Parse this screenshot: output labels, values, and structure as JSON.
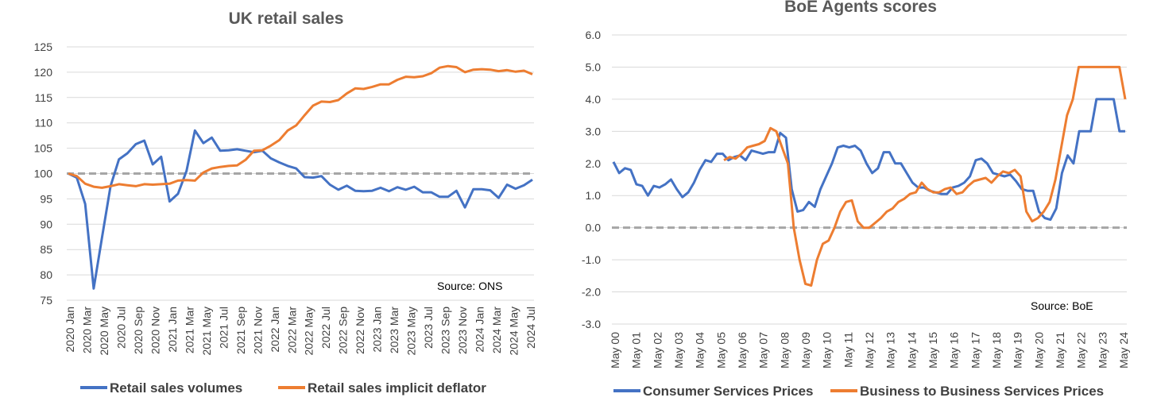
{
  "colors": {
    "blue": "#4472C4",
    "orange": "#ED7D31",
    "reference": "#A6A6A6",
    "grid": "#D9D9D9"
  },
  "chart_data": [
    {
      "type": "line",
      "title": "UK retail sales",
      "source": "Source: ONS",
      "ylim": [
        75,
        125
      ],
      "yticks": [
        "75",
        "80",
        "85",
        "90",
        "95",
        "100",
        "105",
        "110",
        "115",
        "120",
        "125"
      ],
      "grid": true,
      "legend_position": "bottom",
      "x_tick_labels": [
        "2020 Jan",
        "2020 Mar",
        "2020 May",
        "2020 Jul",
        "2020 Sep",
        "2020 Nov",
        "2021 Jan",
        "2021 Mar",
        "2021 May",
        "2021 Jul",
        "2021 Sep",
        "2021 Nov",
        "2022 Jan",
        "2022 Mar",
        "2022 May",
        "2022 Jul",
        "2022 Sep",
        "2022 Nov",
        "2023 Jan",
        "2023 Mar",
        "2023 May",
        "2023 Jul",
        "2023 Sep",
        "2023 Nov",
        "2024 Jan",
        "2024 Mar",
        "2024 May",
        "2024 Jul"
      ],
      "reference_line": 100,
      "series": [
        {
          "name": "Retail sales volumes",
          "color": "#4472C4",
          "values": [
            100.0,
            99.2,
            94.0,
            77.3,
            87.5,
            97.5,
            102.8,
            104.0,
            105.8,
            106.5,
            101.8,
            103.3,
            94.5,
            96.0,
            100.5,
            108.5,
            106.0,
            107.1,
            104.5,
            104.6,
            104.8,
            104.5,
            104.2,
            104.5,
            103.0,
            102.2,
            101.5,
            101.0,
            99.3,
            99.2,
            99.5,
            97.8,
            96.8,
            97.6,
            96.6,
            96.5,
            96.6,
            97.2,
            96.5,
            97.3,
            96.8,
            97.4,
            96.3,
            96.3,
            95.4,
            95.4,
            96.6,
            93.3,
            96.9,
            96.9,
            96.7,
            95.2,
            97.8,
            97.0,
            97.7,
            98.8
          ]
        },
        {
          "name": "Retail sales implicit deflator",
          "color": "#ED7D31",
          "values": [
            100.0,
            99.5,
            98.0,
            97.4,
            97.2,
            97.5,
            97.9,
            97.7,
            97.5,
            97.9,
            97.8,
            97.9,
            98.0,
            98.6,
            98.7,
            98.6,
            100.2,
            101.0,
            101.3,
            101.5,
            101.6,
            102.7,
            104.5,
            104.6,
            105.5,
            106.6,
            108.5,
            109.5,
            111.5,
            113.4,
            114.2,
            114.1,
            114.5,
            115.8,
            116.8,
            116.7,
            117.1,
            117.6,
            117.6,
            118.5,
            119.1,
            119.0,
            119.2,
            119.8,
            120.9,
            121.2,
            121.0,
            120.0,
            120.5,
            120.6,
            120.5,
            120.2,
            120.4,
            120.1,
            120.3,
            119.6
          ]
        }
      ]
    },
    {
      "type": "line",
      "title": "BoE Agents scores",
      "source": "Source: BoE",
      "ylim": [
        -3.0,
        6.0
      ],
      "yticks": [
        "-3.0",
        "-2.0",
        "-1.0",
        "0.0",
        "1.0",
        "2.0",
        "3.0",
        "4.0",
        "5.0",
        "6.0"
      ],
      "grid": true,
      "legend_position": "bottom",
      "x_tick_labels": [
        "May 00",
        "May 01",
        "May 02",
        "May 03",
        "May 04",
        "May 05",
        "May 06",
        "May 07",
        "May 08",
        "May 09",
        "May 10",
        "May 11",
        "May 12",
        "May 13",
        "May 14",
        "May 15",
        "May 16",
        "May 17",
        "May 18",
        "May 19",
        "May 20",
        "May 21",
        "May 22",
        "May 23",
        "May 24"
      ],
      "reference_line": 0,
      "series": [
        {
          "name": "Consumer Services Prices",
          "color": "#4472C4",
          "values": [
            2.05,
            1.7,
            1.85,
            1.8,
            1.35,
            1.3,
            1.0,
            1.3,
            1.25,
            1.35,
            1.5,
            1.2,
            0.95,
            1.1,
            1.4,
            1.8,
            2.1,
            2.05,
            2.3,
            2.3,
            2.1,
            2.2,
            2.25,
            2.1,
            2.4,
            2.35,
            2.3,
            2.35,
            2.35,
            2.95,
            2.8,
            1.2,
            0.5,
            0.55,
            0.8,
            0.65,
            1.2,
            1.6,
            2.0,
            2.5,
            2.55,
            2.5,
            2.55,
            2.4,
            2.0,
            1.7,
            1.85,
            2.35,
            2.35,
            2.0,
            2.0,
            1.7,
            1.4,
            1.25,
            1.25,
            1.15,
            1.1,
            1.05,
            1.05,
            1.25,
            1.3,
            1.4,
            1.6,
            2.1,
            2.15,
            2.0,
            1.7,
            1.65,
            1.6,
            1.65,
            1.45,
            1.2,
            1.15,
            1.15,
            0.5,
            0.3,
            0.25,
            0.6,
            1.7,
            2.25,
            2.0,
            3.0,
            3.0,
            3.0,
            4.0,
            4.0,
            4.0,
            4.0,
            3.0,
            3.0
          ]
        },
        {
          "name": "Business to Business Services Prices",
          "color": "#ED7D31",
          "values": [
            null,
            null,
            null,
            null,
            null,
            null,
            null,
            null,
            null,
            null,
            null,
            null,
            null,
            null,
            null,
            null,
            null,
            null,
            null,
            2.1,
            2.2,
            2.15,
            2.3,
            2.5,
            2.55,
            2.6,
            2.7,
            3.1,
            3.0,
            2.5,
            2.0,
            0.0,
            -1.0,
            -1.75,
            -1.8,
            -1.0,
            -0.5,
            -0.4,
            0.0,
            0.5,
            0.8,
            0.85,
            0.2,
            0.0,
            0.0,
            0.15,
            0.3,
            0.5,
            0.6,
            0.8,
            0.9,
            1.05,
            1.1,
            1.4,
            1.2,
            1.1,
            1.1,
            1.2,
            1.25,
            1.05,
            1.1,
            1.3,
            1.45,
            1.5,
            1.55,
            1.4,
            1.6,
            1.75,
            1.7,
            1.8,
            1.6,
            0.5,
            0.2,
            0.3,
            0.5,
            0.8,
            1.5,
            2.5,
            3.5,
            4.0,
            5.0,
            5.0,
            5.0,
            5.0,
            5.0,
            5.0,
            5.0,
            5.0,
            4.0
          ]
        }
      ]
    }
  ]
}
